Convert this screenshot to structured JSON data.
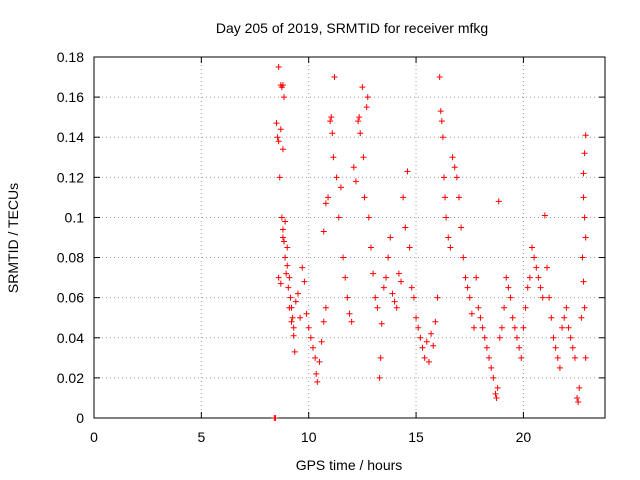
{
  "chart_data": {
    "type": "scatter",
    "title": "Day 205 of 2019, SRMTID for receiver mfkg",
    "xlabel": "GPS time / hours",
    "ylabel": "SRMTID / TECUs",
    "xlim": [
      0,
      23.8
    ],
    "ylim": [
      0,
      0.18
    ],
    "xticks": [
      0,
      5,
      10,
      15,
      20
    ],
    "yticks": [
      0,
      0.02,
      0.04,
      0.06,
      0.08,
      0.1,
      0.12,
      0.14,
      0.16,
      0.18
    ],
    "xtick_labels": [
      "0",
      "5",
      "10",
      "15",
      "20"
    ],
    "ytick_labels": [
      "0",
      "0.02",
      "0.04",
      "0.06",
      "0.08",
      "0.1",
      "0.12",
      "0.14",
      "0.16",
      "0.18"
    ],
    "grid": true,
    "marker": "plus",
    "color": "#ff0000",
    "series": [
      {
        "name": "SRMTID",
        "points": [
          [
            8.4,
            0.0
          ],
          [
            8.45,
            0.0
          ],
          [
            8.5,
            0.147
          ],
          [
            8.55,
            0.14
          ],
          [
            8.6,
            0.138
          ],
          [
            8.65,
            0.12
          ],
          [
            8.7,
            0.166
          ],
          [
            8.75,
            0.165
          ],
          [
            8.8,
            0.166
          ],
          [
            8.85,
            0.16
          ],
          [
            8.6,
            0.175
          ],
          [
            8.7,
            0.144
          ],
          [
            8.8,
            0.134
          ],
          [
            8.75,
            0.1
          ],
          [
            8.8,
            0.094
          ],
          [
            8.85,
            0.088
          ],
          [
            8.9,
            0.08
          ],
          [
            8.95,
            0.072
          ],
          [
            9.0,
            0.085
          ],
          [
            9.05,
            0.065
          ],
          [
            9.1,
            0.07
          ],
          [
            9.15,
            0.06
          ],
          [
            9.2,
            0.055
          ],
          [
            9.25,
            0.05
          ],
          [
            9.3,
            0.045
          ],
          [
            9.35,
            0.033
          ],
          [
            8.6,
            0.07
          ],
          [
            8.7,
            0.067
          ],
          [
            8.8,
            0.09
          ],
          [
            8.9,
            0.098
          ],
          [
            9.0,
            0.076
          ],
          [
            9.1,
            0.055
          ],
          [
            9.2,
            0.048
          ],
          [
            9.3,
            0.041
          ],
          [
            9.4,
            0.058
          ],
          [
            9.5,
            0.062
          ],
          [
            9.6,
            0.05
          ],
          [
            9.7,
            0.075
          ],
          [
            9.8,
            0.068
          ],
          [
            9.9,
            0.052
          ],
          [
            10.0,
            0.045
          ],
          [
            10.1,
            0.04
          ],
          [
            10.2,
            0.035
          ],
          [
            10.3,
            0.03
          ],
          [
            10.35,
            0.022
          ],
          [
            10.4,
            0.018
          ],
          [
            10.5,
            0.028
          ],
          [
            10.6,
            0.038
          ],
          [
            10.7,
            0.048
          ],
          [
            10.8,
            0.055
          ],
          [
            10.7,
            0.093
          ],
          [
            10.8,
            0.107
          ],
          [
            10.9,
            0.11
          ],
          [
            11.0,
            0.148
          ],
          [
            11.05,
            0.15
          ],
          [
            11.1,
            0.142
          ],
          [
            11.15,
            0.13
          ],
          [
            11.2,
            0.17
          ],
          [
            11.3,
            0.12
          ],
          [
            11.4,
            0.1
          ],
          [
            11.5,
            0.115
          ],
          [
            11.6,
            0.08
          ],
          [
            11.7,
            0.07
          ],
          [
            11.8,
            0.06
          ],
          [
            11.9,
            0.052
          ],
          [
            12.0,
            0.048
          ],
          [
            12.1,
            0.125
          ],
          [
            12.2,
            0.118
          ],
          [
            12.3,
            0.148
          ],
          [
            12.35,
            0.15
          ],
          [
            12.4,
            0.142
          ],
          [
            12.5,
            0.165
          ],
          [
            12.55,
            0.13
          ],
          [
            12.6,
            0.11
          ],
          [
            12.7,
            0.155
          ],
          [
            12.75,
            0.16
          ],
          [
            12.8,
            0.1
          ],
          [
            12.9,
            0.085
          ],
          [
            13.0,
            0.072
          ],
          [
            13.1,
            0.06
          ],
          [
            13.2,
            0.055
          ],
          [
            13.3,
            0.02
          ],
          [
            13.35,
            0.03
          ],
          [
            13.4,
            0.047
          ],
          [
            13.5,
            0.065
          ],
          [
            13.6,
            0.07
          ],
          [
            13.7,
            0.08
          ],
          [
            13.8,
            0.09
          ],
          [
            13.9,
            0.062
          ],
          [
            14.0,
            0.058
          ],
          [
            14.1,
            0.055
          ],
          [
            14.2,
            0.072
          ],
          [
            14.3,
            0.068
          ],
          [
            14.4,
            0.11
          ],
          [
            14.5,
            0.095
          ],
          [
            14.6,
            0.123
          ],
          [
            14.7,
            0.085
          ],
          [
            14.8,
            0.065
          ],
          [
            14.9,
            0.06
          ],
          [
            15.0,
            0.05
          ],
          [
            15.1,
            0.045
          ],
          [
            15.2,
            0.04
          ],
          [
            15.3,
            0.035
          ],
          [
            15.4,
            0.03
          ],
          [
            15.5,
            0.038
          ],
          [
            15.6,
            0.028
          ],
          [
            15.7,
            0.042
          ],
          [
            15.8,
            0.036
          ],
          [
            15.9,
            0.048
          ],
          [
            16.0,
            0.06
          ],
          [
            16.1,
            0.17
          ],
          [
            16.15,
            0.153
          ],
          [
            16.2,
            0.148
          ],
          [
            16.25,
            0.14
          ],
          [
            16.3,
            0.12
          ],
          [
            16.35,
            0.11
          ],
          [
            16.4,
            0.1
          ],
          [
            16.5,
            0.09
          ],
          [
            16.6,
            0.085
          ],
          [
            16.7,
            0.13
          ],
          [
            16.8,
            0.125
          ],
          [
            16.9,
            0.12
          ],
          [
            17.0,
            0.11
          ],
          [
            17.1,
            0.095
          ],
          [
            17.2,
            0.08
          ],
          [
            17.3,
            0.07
          ],
          [
            17.4,
            0.065
          ],
          [
            17.5,
            0.06
          ],
          [
            17.6,
            0.052
          ],
          [
            17.7,
            0.045
          ],
          [
            17.8,
            0.07
          ],
          [
            17.9,
            0.055
          ],
          [
            18.0,
            0.05
          ],
          [
            18.1,
            0.045
          ],
          [
            18.2,
            0.04
          ],
          [
            18.3,
            0.035
          ],
          [
            18.4,
            0.03
          ],
          [
            18.5,
            0.025
          ],
          [
            18.6,
            0.02
          ],
          [
            18.7,
            0.012
          ],
          [
            18.75,
            0.01
          ],
          [
            18.8,
            0.015
          ],
          [
            18.85,
            0.108
          ],
          [
            18.9,
            0.04
          ],
          [
            19.0,
            0.045
          ],
          [
            19.1,
            0.055
          ],
          [
            19.2,
            0.07
          ],
          [
            19.3,
            0.065
          ],
          [
            19.4,
            0.06
          ],
          [
            19.5,
            0.05
          ],
          [
            19.6,
            0.045
          ],
          [
            19.7,
            0.04
          ],
          [
            19.8,
            0.035
          ],
          [
            19.9,
            0.03
          ],
          [
            20.0,
            0.045
          ],
          [
            20.1,
            0.055
          ],
          [
            20.2,
            0.065
          ],
          [
            20.3,
            0.07
          ],
          [
            20.4,
            0.085
          ],
          [
            20.5,
            0.08
          ],
          [
            20.6,
            0.075
          ],
          [
            20.7,
            0.07
          ],
          [
            20.8,
            0.065
          ],
          [
            20.9,
            0.06
          ],
          [
            21.0,
            0.101
          ],
          [
            21.1,
            0.075
          ],
          [
            21.2,
            0.06
          ],
          [
            21.3,
            0.05
          ],
          [
            21.4,
            0.04
          ],
          [
            21.5,
            0.035
          ],
          [
            21.6,
            0.03
          ],
          [
            21.7,
            0.025
          ],
          [
            21.8,
            0.045
          ],
          [
            21.9,
            0.05
          ],
          [
            22.0,
            0.055
          ],
          [
            22.1,
            0.045
          ],
          [
            22.2,
            0.04
          ],
          [
            22.3,
            0.035
          ],
          [
            22.4,
            0.03
          ],
          [
            22.5,
            0.01
          ],
          [
            22.55,
            0.008
          ],
          [
            22.6,
            0.015
          ],
          [
            22.7,
            0.05
          ],
          [
            22.8,
            0.122
          ],
          [
            22.85,
            0.132
          ],
          [
            22.9,
            0.141
          ],
          [
            22.8,
            0.11
          ],
          [
            22.85,
            0.1
          ],
          [
            22.9,
            0.09
          ],
          [
            22.75,
            0.08
          ],
          [
            22.8,
            0.068
          ],
          [
            22.85,
            0.055
          ],
          [
            22.9,
            0.03
          ]
        ]
      }
    ]
  }
}
